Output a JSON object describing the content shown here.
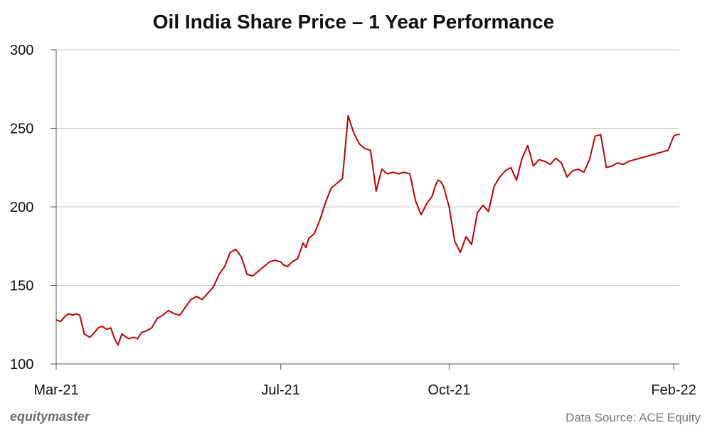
{
  "chart_data": {
    "type": "line",
    "title": "Oil India Share Price – 1 Year Performance",
    "xlabel": "",
    "ylabel": "",
    "ylim": [
      100,
      300
    ],
    "yticks": [
      100,
      150,
      200,
      250,
      300
    ],
    "xlim": [
      0,
      11.1
    ],
    "xticks": [
      {
        "label": "Mar-21",
        "x": 0
      },
      {
        "label": "Jul-21",
        "x": 4
      },
      {
        "label": "Oct-21",
        "x": 7
      },
      {
        "label": "Feb-22",
        "x": 11
      }
    ],
    "grid": true,
    "series": [
      {
        "name": "Oil India Share Price",
        "color": "#c00000",
        "x": [
          0,
          0.08,
          0.15,
          0.22,
          0.3,
          0.35,
          0.42,
          0.5,
          0.55,
          0.6,
          0.68,
          0.75,
          0.82,
          0.9,
          0.97,
          1.04,
          1.1,
          1.17,
          1.25,
          1.3,
          1.38,
          1.45,
          1.52,
          1.6,
          1.7,
          1.8,
          1.9,
          2.0,
          2.1,
          2.2,
          2.3,
          2.4,
          2.5,
          2.6,
          2.7,
          2.8,
          2.9,
          3.0,
          3.1,
          3.2,
          3.3,
          3.4,
          3.5,
          3.6,
          3.7,
          3.8,
          3.9,
          4.0,
          4.05,
          4.12,
          4.2,
          4.3,
          4.4,
          4.45,
          4.5,
          4.6,
          4.7,
          4.8,
          4.9,
          5.0,
          5.1,
          5.2,
          5.3,
          5.4,
          5.5,
          5.6,
          5.7,
          5.8,
          5.9,
          6.0,
          6.1,
          6.2,
          6.3,
          6.4,
          6.5,
          6.6,
          6.7,
          6.75,
          6.8,
          6.85,
          6.9,
          7.0,
          7.1,
          7.2,
          7.3,
          7.4,
          7.5,
          7.6,
          7.7,
          7.8,
          7.9,
          8.0,
          8.1,
          8.2,
          8.3,
          8.4,
          8.5,
          8.6,
          8.7,
          8.8,
          8.9,
          9.0,
          9.1,
          9.2,
          9.3,
          9.4,
          9.5,
          9.6,
          9.7,
          9.8,
          9.9,
          10.0,
          10.1,
          10.2,
          10.3,
          10.4,
          10.5,
          10.6,
          10.7,
          10.8,
          10.9,
          11.0,
          11.05,
          11.1
        ],
        "values": [
          128,
          127,
          130,
          132,
          131,
          132,
          131,
          119,
          118,
          117,
          120,
          123,
          124,
          122,
          123,
          116,
          112,
          119,
          117,
          116,
          117,
          116,
          120,
          121,
          123,
          129,
          131,
          134,
          132,
          131,
          136,
          141,
          143,
          141,
          145,
          149,
          157,
          162,
          171,
          173,
          168,
          157,
          156,
          159,
          162,
          165,
          166,
          165,
          163,
          162,
          165,
          167,
          177,
          174,
          180,
          183,
          192,
          203,
          212,
          215,
          218,
          258,
          247,
          240,
          237,
          236,
          210,
          224,
          221,
          222,
          221,
          222,
          221,
          204,
          195,
          202,
          207,
          213,
          217,
          216,
          213,
          200,
          178,
          171,
          181,
          176,
          196,
          201,
          197,
          213,
          219,
          223,
          225,
          217,
          231,
          239,
          226,
          230,
          229,
          227,
          231,
          228,
          219,
          223,
          224,
          222,
          230,
          245,
          246,
          225,
          226,
          228,
          227,
          229,
          230,
          231,
          232,
          233,
          234,
          235,
          236,
          245,
          246,
          246
        ],
        "note": "x in months since start of Mar-21"
      }
    ]
  },
  "brand": {
    "logo_text": "equitymaster"
  },
  "footer": {
    "source": "Data Source: ACE Equity"
  },
  "colors": {
    "line": "#c00000",
    "grid": "#c8c8c8",
    "axis": "#555555"
  }
}
